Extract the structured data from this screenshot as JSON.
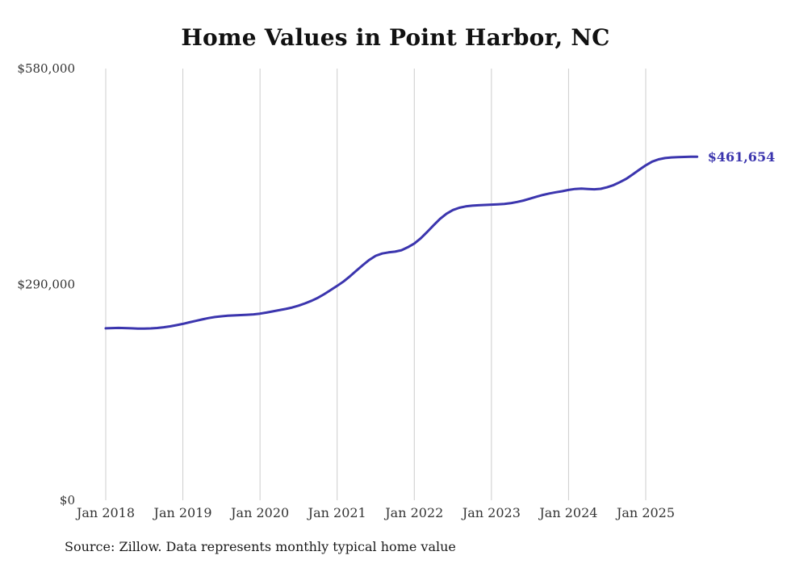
{
  "chart_data": {
    "type": "line",
    "title": "Home Values in Point Harbor, NC",
    "line_color": "#3b35ae",
    "grid_color": "#cccccc",
    "tick_color": "#333333",
    "end_label": "$461,654",
    "latest_value": 461654,
    "ylim": [
      0,
      580000
    ],
    "grid": "vertical-only",
    "y_ticks": [
      {
        "value": 0,
        "label": "$0"
      },
      {
        "value": 290000,
        "label": "$290,000"
      },
      {
        "value": 580000,
        "label": "$580,000"
      }
    ],
    "x_ticks": [
      {
        "month_index": 0,
        "label": "Jan 2018"
      },
      {
        "month_index": 12,
        "label": "Jan 2019"
      },
      {
        "month_index": 24,
        "label": "Jan 2020"
      },
      {
        "month_index": 36,
        "label": "Jan 2021"
      },
      {
        "month_index": 48,
        "label": "Jan 2022"
      },
      {
        "month_index": 60,
        "label": "Jan 2023"
      },
      {
        "month_index": 72,
        "label": "Jan 2024"
      },
      {
        "month_index": 84,
        "label": "Jan 2025"
      }
    ],
    "months": [
      "2018-01",
      "2018-02",
      "2018-03",
      "2018-04",
      "2018-05",
      "2018-06",
      "2018-07",
      "2018-08",
      "2018-09",
      "2018-10",
      "2018-11",
      "2018-12",
      "2019-01",
      "2019-02",
      "2019-03",
      "2019-04",
      "2019-05",
      "2019-06",
      "2019-07",
      "2019-08",
      "2019-09",
      "2019-10",
      "2019-11",
      "2019-12",
      "2020-01",
      "2020-02",
      "2020-03",
      "2020-04",
      "2020-05",
      "2020-06",
      "2020-07",
      "2020-08",
      "2020-09",
      "2020-10",
      "2020-11",
      "2020-12",
      "2021-01",
      "2021-02",
      "2021-03",
      "2021-04",
      "2021-05",
      "2021-06",
      "2021-07",
      "2021-08",
      "2021-09",
      "2021-10",
      "2021-11",
      "2021-12",
      "2022-01",
      "2022-02",
      "2022-03",
      "2022-04",
      "2022-05",
      "2022-06",
      "2022-07",
      "2022-08",
      "2022-09",
      "2022-10",
      "2022-11",
      "2022-12",
      "2023-01",
      "2023-02",
      "2023-03",
      "2023-04",
      "2023-05",
      "2023-06",
      "2023-07",
      "2023-08",
      "2023-09",
      "2023-10",
      "2023-11",
      "2023-12",
      "2024-01",
      "2024-02",
      "2024-03",
      "2024-04",
      "2024-05",
      "2024-06",
      "2024-07",
      "2024-08",
      "2024-09",
      "2024-10",
      "2024-11",
      "2024-12",
      "2025-01",
      "2025-02",
      "2025-03",
      "2025-04",
      "2025-05",
      "2025-06",
      "2025-07",
      "2025-08",
      "2025-09"
    ],
    "values": [
      231000,
      231400,
      231600,
      231400,
      231000,
      230700,
      230600,
      230900,
      231500,
      232400,
      233600,
      235200,
      237000,
      239000,
      241000,
      243000,
      244800,
      246200,
      247200,
      247900,
      248400,
      248800,
      249200,
      249800,
      250800,
      252200,
      253800,
      255400,
      257000,
      259000,
      261500,
      264500,
      268000,
      272000,
      277000,
      282500,
      288000,
      294000,
      301000,
      308500,
      316000,
      323000,
      328500,
      331500,
      333000,
      334000,
      336000,
      340000,
      345000,
      352000,
      360500,
      369500,
      378000,
      385000,
      390000,
      393000,
      394800,
      395800,
      396400,
      396800,
      397200,
      397600,
      398200,
      399200,
      400800,
      402800,
      405200,
      407800,
      410200,
      412200,
      413800,
      415200,
      417000,
      418200,
      418800,
      418300,
      417800,
      418500,
      420500,
      423500,
      427500,
      432000,
      438000,
      444000,
      450000,
      455000,
      458000,
      459800,
      460600,
      461000,
      461300,
      461500,
      461654
    ]
  },
  "source_note": "Source: Zillow. Data represents monthly typical home value"
}
